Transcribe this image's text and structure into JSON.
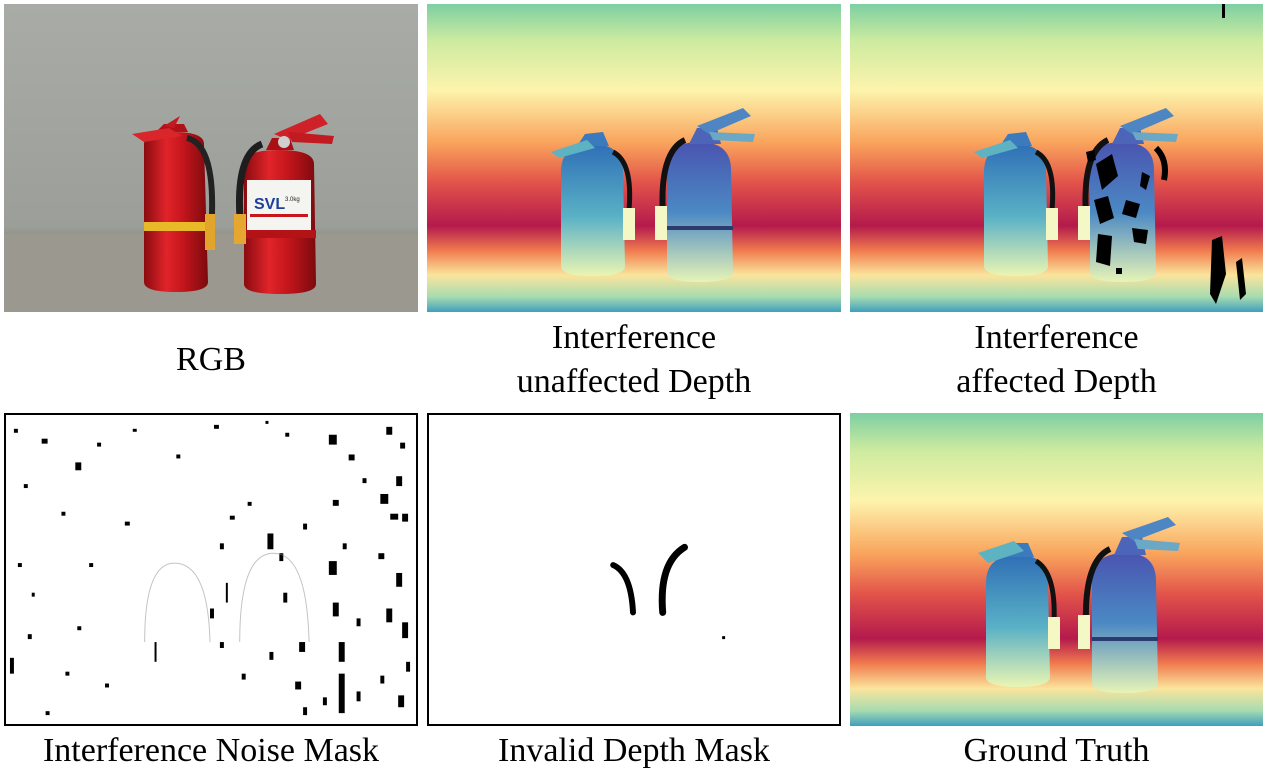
{
  "panels": [
    {
      "id": "rgb",
      "caption_lines": [
        "RGB"
      ]
    },
    {
      "id": "unaffected",
      "caption_lines": [
        "Interference",
        "unaffected Depth"
      ]
    },
    {
      "id": "affected",
      "caption_lines": [
        "Interference",
        "affected Depth"
      ]
    },
    {
      "id": "noise_mask",
      "caption_lines": [
        "Interference Noise Mask"
      ]
    },
    {
      "id": "invalid_mask",
      "caption_lines": [
        "Invalid Depth Mask"
      ]
    },
    {
      "id": "ground_truth",
      "caption_lines": [
        "Ground Truth"
      ]
    }
  ],
  "extinguisher_label": {
    "brand": "SVL",
    "capacity": "3.0kg"
  },
  "colors": {
    "depth_top": "#6cc5a4",
    "depth_yellow": "#fdf3a8",
    "depth_orange": "#f4874f",
    "depth_red": "#b01a4a",
    "extinguisher_near": "#3f7fc0",
    "extinguisher_far": "#5b3ea3",
    "rgb_wall": "#a6a8a2",
    "rgb_extinguisher": "#c8141a"
  }
}
